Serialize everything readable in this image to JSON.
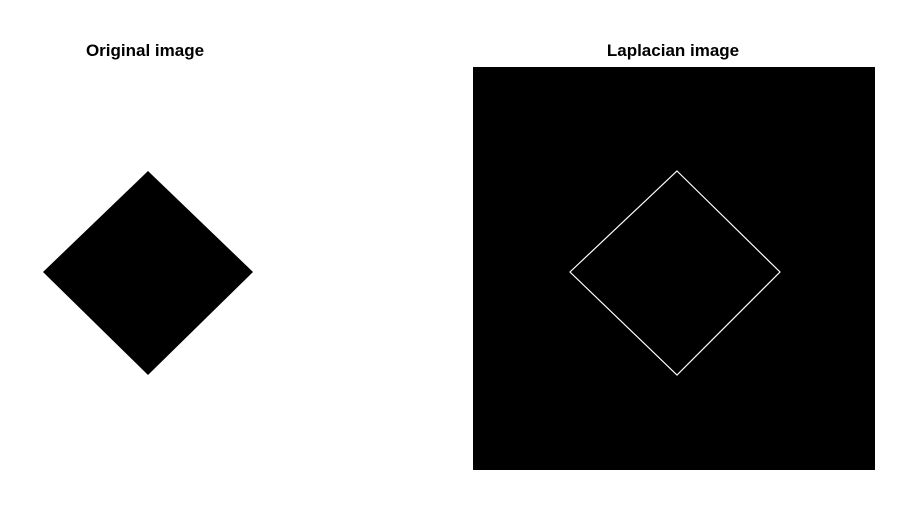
{
  "figure": {
    "left_panel": {
      "title": "Original image",
      "background": "#ffffff",
      "shape": "diamond",
      "shape_fill": "#000000"
    },
    "right_panel": {
      "title": "Laplacian image",
      "background": "#000000",
      "shape": "diamond-outline",
      "edge_color": "#ffffff"
    }
  }
}
